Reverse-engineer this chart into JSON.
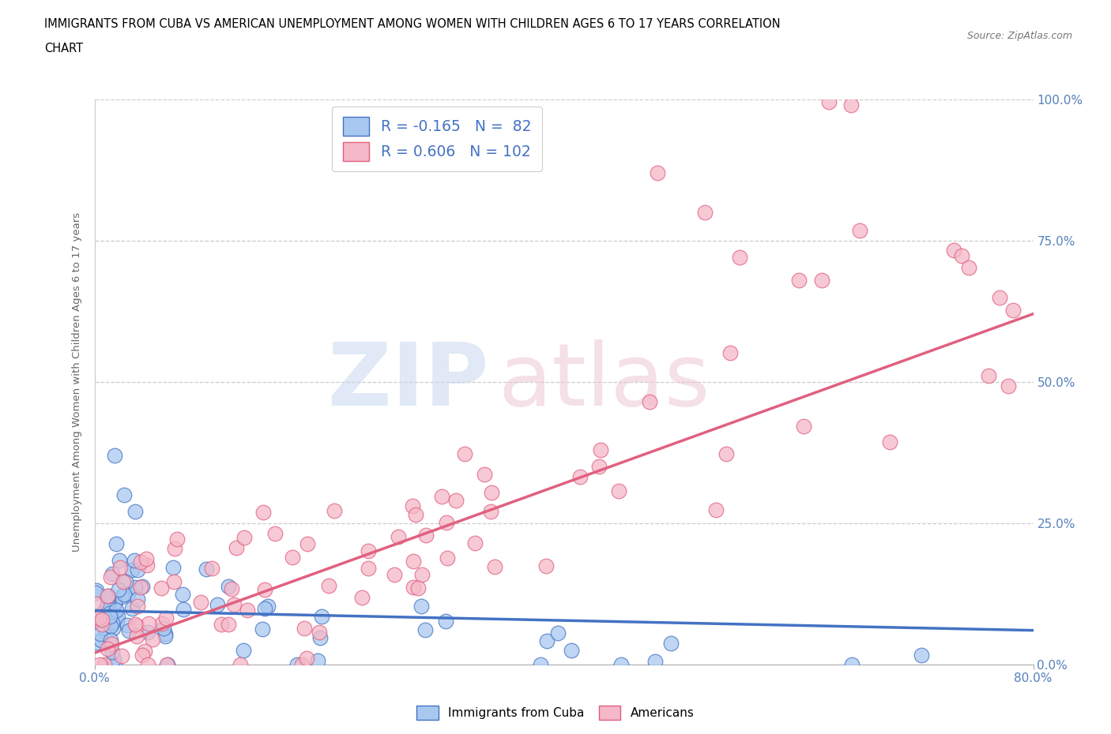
{
  "title_line1": "IMMIGRANTS FROM CUBA VS AMERICAN UNEMPLOYMENT AMONG WOMEN WITH CHILDREN AGES 6 TO 17 YEARS CORRELATION",
  "title_line2": "CHART",
  "source": "Source: ZipAtlas.com",
  "ylabel": "Unemployment Among Women with Children Ages 6 to 17 years",
  "x_min": 0.0,
  "x_max": 0.8,
  "y_min": 0.0,
  "y_max": 1.0,
  "r_blue": -0.165,
  "n_blue": 82,
  "r_pink": 0.606,
  "n_pink": 102,
  "color_blue_fill": "#A8C8F0",
  "color_pink_fill": "#F5B8C8",
  "color_blue_edge": "#4472C4",
  "color_pink_edge": "#E06080",
  "color_blue_line": "#4472C4",
  "color_pink_line": "#E06080",
  "legend_label_blue": "Immigrants from Cuba",
  "legend_label_pink": "Americans",
  "tick_color": "#5580BB"
}
